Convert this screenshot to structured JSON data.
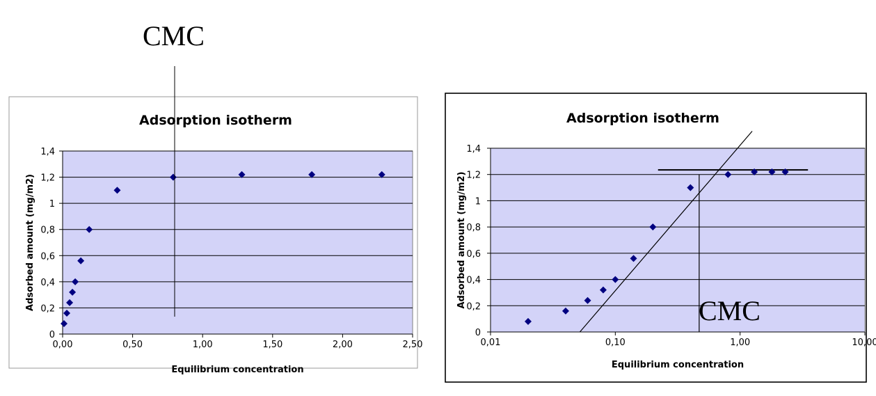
{
  "annotations": {
    "cmc_top": "CMC",
    "cmc_inset": "CMC"
  },
  "colors": {
    "plot_bg": "#d3d3f8",
    "marker": "#000080",
    "gridline": "#000000",
    "frame": "#9a9a9a",
    "frame_right": "#000000"
  },
  "chart_data": [
    {
      "type": "scatter",
      "title": "Adsorption isotherm",
      "xlabel": "Equilibrium concentration",
      "ylabel": "Adsorbed amount (mg/m2)",
      "xscale": "linear",
      "xlim": [
        0,
        2.5
      ],
      "ylim": [
        0,
        1.4
      ],
      "xticks": [
        "0,00",
        "0,50",
        "1,00",
        "1,50",
        "2,00",
        "2,50"
      ],
      "yticks": [
        "0",
        "0,2",
        "0,4",
        "0,6",
        "0,8",
        "1",
        "1,2",
        "1,4"
      ],
      "grid": "horizontal",
      "legend": "none",
      "x": [
        0.01,
        0.03,
        0.05,
        0.07,
        0.09,
        0.13,
        0.19,
        0.39,
        0.79,
        1.28,
        1.78,
        2.28
      ],
      "y": [
        0.08,
        0.16,
        0.24,
        0.32,
        0.4,
        0.56,
        0.8,
        1.1,
        1.2,
        1.22,
        1.22,
        1.22
      ],
      "cmc_line_x": 0.8
    },
    {
      "type": "scatter",
      "title": "Adsorption isotherm",
      "xlabel": "Equilibrium concentration",
      "ylabel": "Adsorbed amount (mg/m2)",
      "xscale": "log",
      "xlim": [
        0.01,
        10
      ],
      "ylim": [
        0,
        1.4
      ],
      "xticks": [
        "0,01",
        "0,10",
        "1,00",
        "10,00"
      ],
      "yticks": [
        "0",
        "0,2",
        "0,4",
        "0,6",
        "0,8",
        "1",
        "1,2",
        "1,4"
      ],
      "grid": "horizontal",
      "legend": "none",
      "x": [
        0.02,
        0.04,
        0.06,
        0.08,
        0.1,
        0.14,
        0.2,
        0.4,
        0.8,
        1.3,
        1.8,
        2.3
      ],
      "y": [
        0.08,
        0.16,
        0.24,
        0.32,
        0.4,
        0.56,
        0.8,
        1.1,
        1.2,
        1.22,
        1.22,
        1.22
      ],
      "cmc_line_x": 0.47,
      "fit_line": [
        [
          0.052,
          0.0
        ],
        [
          1.25,
          1.53
        ]
      ],
      "plateau_line": [
        [
          0.22,
          1.235
        ],
        [
          3.5,
          1.235
        ]
      ]
    }
  ]
}
